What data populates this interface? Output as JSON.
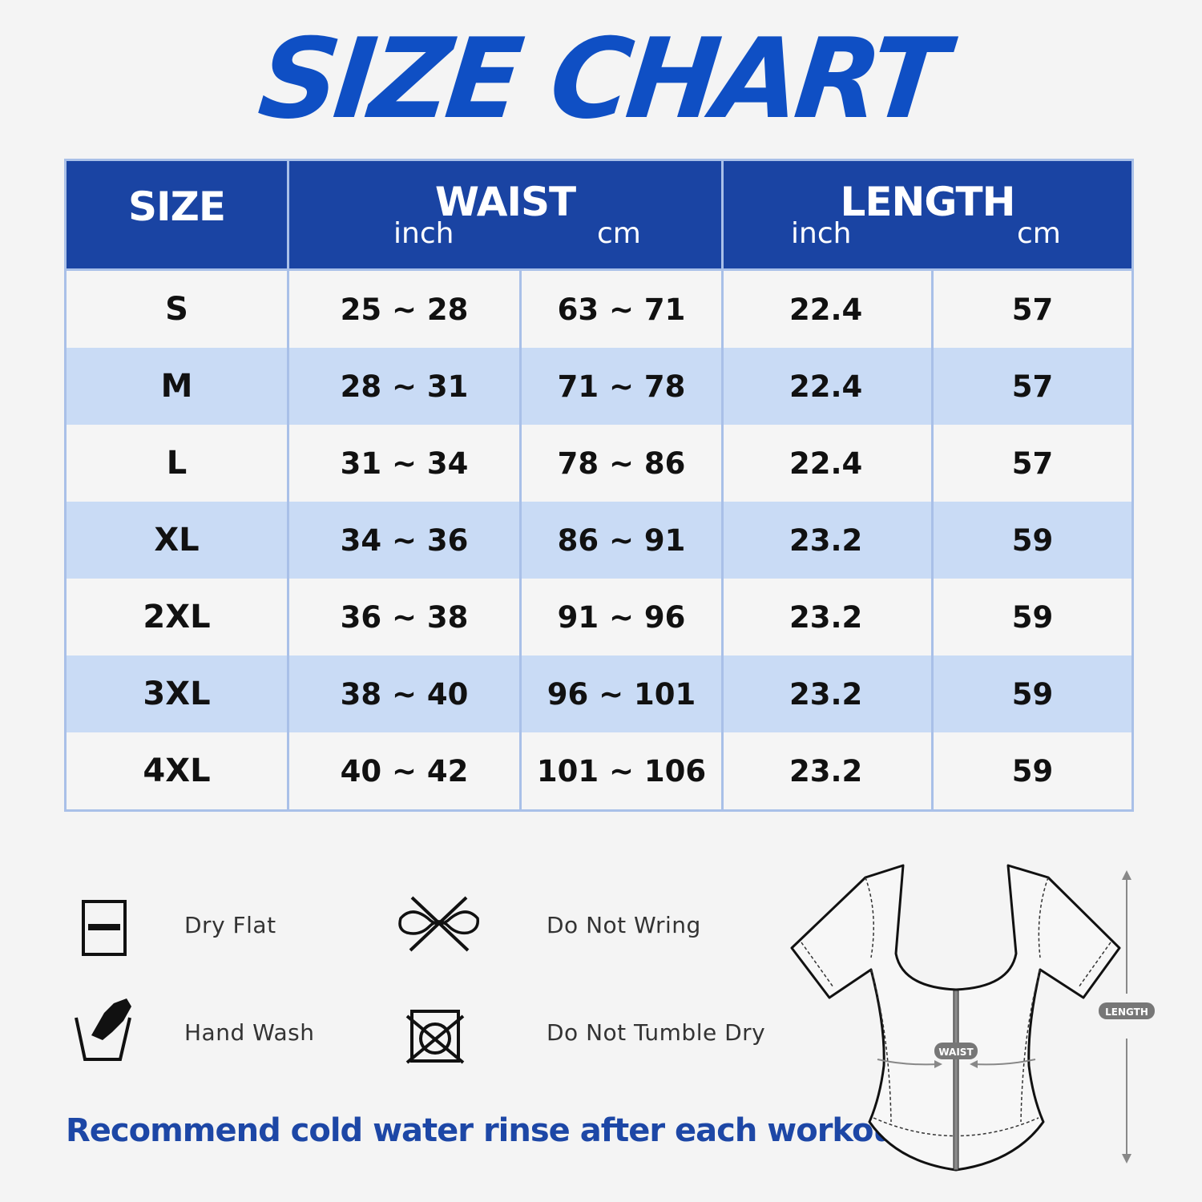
{
  "title": "SIZE CHART",
  "table": {
    "headers": {
      "size": "SIZE",
      "waist": "WAIST",
      "length": "LENGTH",
      "inch": "inch",
      "cm": "cm"
    },
    "rows": [
      {
        "size": "S",
        "waist_inch": "25 ~ 28",
        "waist_cm": "63 ~ 71",
        "length_inch": "22.4",
        "length_cm": "57"
      },
      {
        "size": "M",
        "waist_inch": "28 ~ 31",
        "waist_cm": "71 ~ 78",
        "length_inch": "22.4",
        "length_cm": "57"
      },
      {
        "size": "L",
        "waist_inch": "31 ~ 34",
        "waist_cm": "78 ~ 86",
        "length_inch": "22.4",
        "length_cm": "57"
      },
      {
        "size": "XL",
        "waist_inch": "34 ~ 36",
        "waist_cm": "86 ~ 91",
        "length_inch": "23.2",
        "length_cm": "59"
      },
      {
        "size": "2XL",
        "waist_inch": "36 ~ 38",
        "waist_cm": "91 ~ 96",
        "length_inch": "23.2",
        "length_cm": "59"
      },
      {
        "size": "3XL",
        "waist_inch": "38 ~ 40",
        "waist_cm": "96 ~ 101",
        "length_inch": "23.2",
        "length_cm": "59"
      },
      {
        "size": "4XL",
        "waist_inch": "40 ~ 42",
        "waist_cm": "101 ~ 106",
        "length_inch": "23.2",
        "length_cm": "59"
      }
    ]
  },
  "care": [
    {
      "icon": "dry-flat-icon",
      "label": "Dry Flat"
    },
    {
      "icon": "do-not-wring-icon",
      "label": "Do Not Wring"
    },
    {
      "icon": "hand-wash-icon",
      "label": "Hand Wash"
    },
    {
      "icon": "do-not-tumble-dry-icon",
      "label": "Do Not Tumble Dry"
    }
  ],
  "note": "Recommend cold water rinse after each workout.",
  "diagram": {
    "waist_label": "WAIST",
    "length_label": "LENGTH"
  },
  "colors": {
    "title": "#0f4fc4",
    "header": "#1a44a3",
    "alt_row": "#c9dbf5",
    "border": "#a9c0e8",
    "note": "#1d47a6"
  }
}
